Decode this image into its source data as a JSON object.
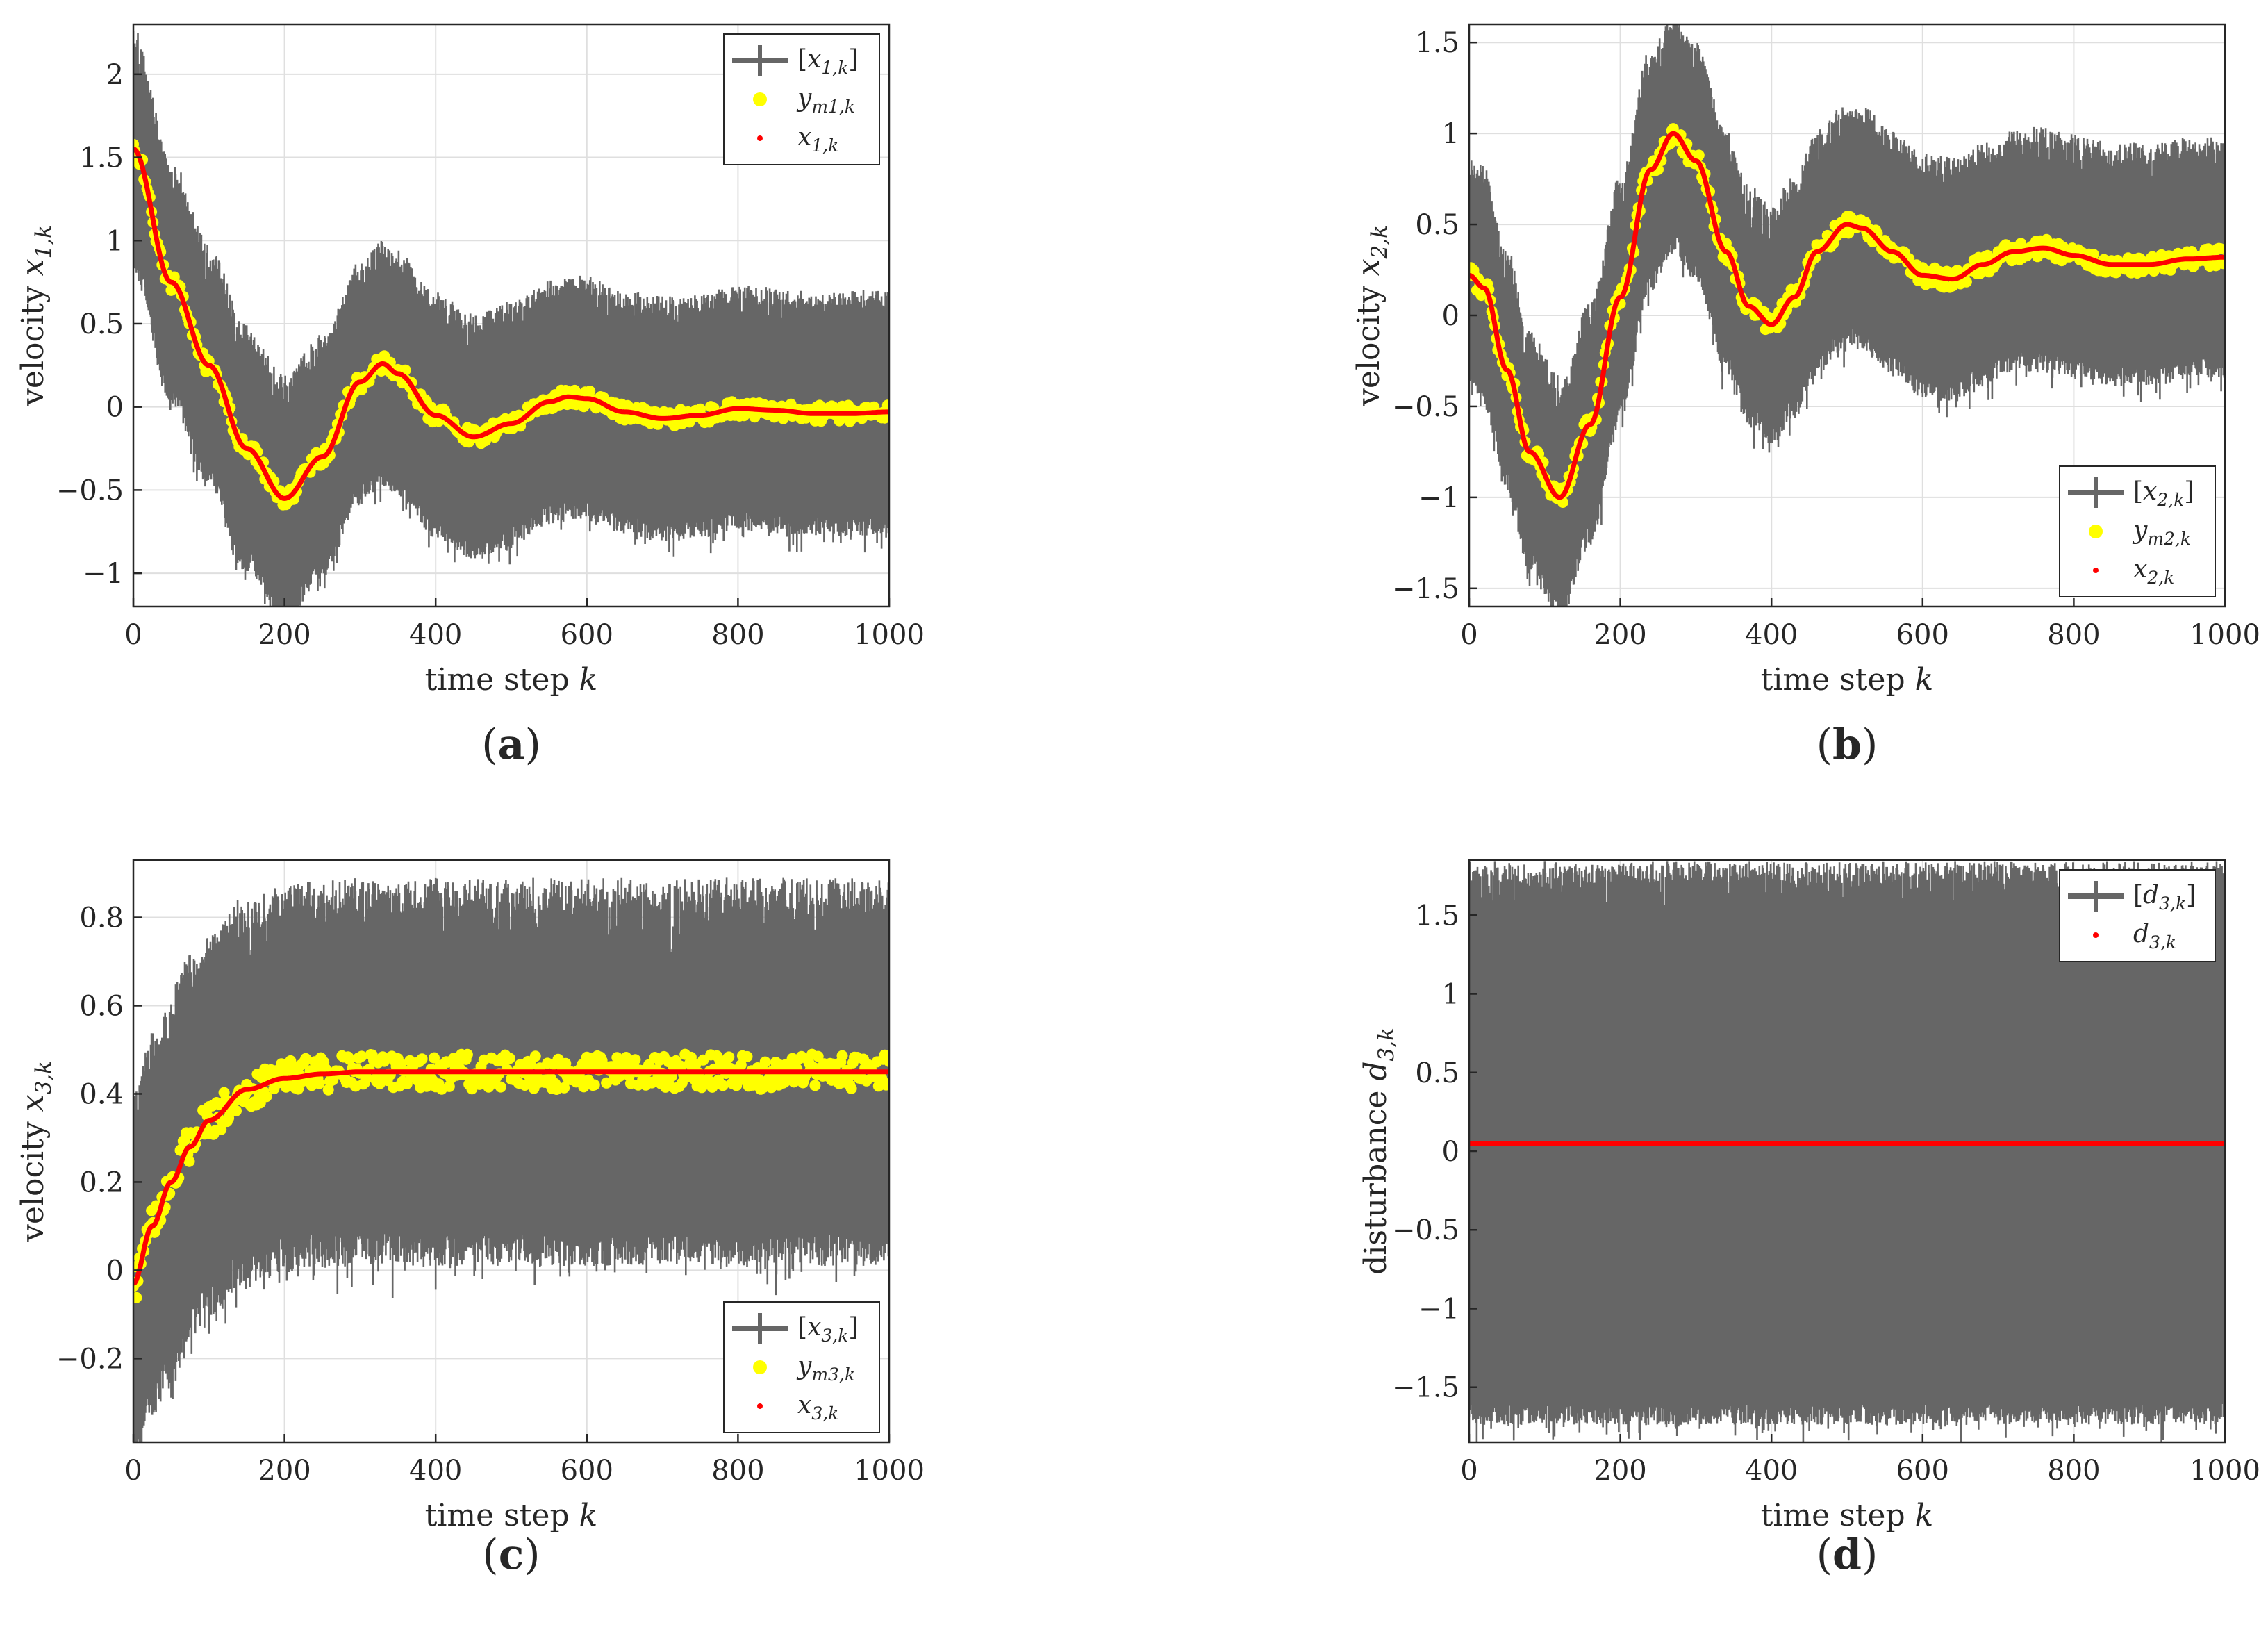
{
  "colors": {
    "band": "#666666",
    "measurement": "#ffff00",
    "truth": "#ff0000",
    "axis": "#262626",
    "grid": "#dfdfdf",
    "legend_border": "#262626"
  },
  "chart_data": [
    {
      "id": "a",
      "type": "line",
      "panel_label": "a",
      "xlabel": "time step k",
      "ylabel": "velocity x1,k",
      "xlim": [
        0,
        1000
      ],
      "ylim": [
        -1.2,
        2.3
      ],
      "xticks": [
        0,
        200,
        400,
        600,
        800,
        1000
      ],
      "xtick_labels": [
        "0",
        "200",
        "400",
        "600",
        "800",
        "1000"
      ],
      "yticks": [
        -1,
        -0.5,
        0,
        0.5,
        1,
        1.5,
        2
      ],
      "ytick_labels": [
        "−1",
        "−0.5",
        "0",
        "0.5",
        "1",
        "1.5",
        "2"
      ],
      "grid": true,
      "legend_position": "top-right",
      "legend": [
        "[x1,k]",
        "ym1,k",
        "x1,k"
      ],
      "signal": {
        "kind": "damped",
        "offset": 0.0,
        "amplitude": 1.55,
        "omega": 0.023,
        "phase": 0.0,
        "decay": 0.0052,
        "start": 1.55,
        "end_shift": -0.03
      },
      "band_halfwidth": 0.62,
      "band_noise": 0.06,
      "measurement_noise": 0.05,
      "x": [
        0,
        50,
        100,
        150,
        200,
        250,
        300,
        330,
        350,
        400,
        450,
        500,
        550,
        575,
        600,
        650,
        700,
        750,
        800,
        850,
        900,
        950,
        1000
      ],
      "series": [
        {
          "name": "x1,k",
          "values": [
            1.55,
            0.75,
            0.25,
            -0.25,
            -0.55,
            -0.3,
            0.15,
            0.26,
            0.2,
            -0.05,
            -0.18,
            -0.1,
            0.03,
            0.06,
            0.05,
            -0.03,
            -0.07,
            -0.05,
            -0.01,
            -0.02,
            -0.04,
            -0.04,
            -0.03
          ]
        }
      ]
    },
    {
      "id": "b",
      "type": "line",
      "panel_label": "b",
      "xlabel": "time step k",
      "ylabel": "velocity x2,k",
      "xlim": [
        0,
        1000
      ],
      "ylim": [
        -1.6,
        1.6
      ],
      "xticks": [
        0,
        200,
        400,
        600,
        800,
        1000
      ],
      "xtick_labels": [
        "0",
        "200",
        "400",
        "600",
        "800",
        "1000"
      ],
      "yticks": [
        -1.5,
        -1,
        -0.5,
        0,
        0.5,
        1,
        1.5
      ],
      "ytick_labels": [
        "−1.5",
        "−1",
        "−0.5",
        "0",
        "0.5",
        "1",
        "1.5"
      ],
      "grid": true,
      "legend_position": "bottom-right",
      "legend": [
        "[x2,k]",
        "ym2,k",
        "x2,k"
      ],
      "band_halfwidth": 0.55,
      "band_noise": 0.06,
      "measurement_noise": 0.05,
      "x": [
        0,
        20,
        50,
        80,
        120,
        160,
        200,
        240,
        270,
        300,
        340,
        370,
        400,
        430,
        460,
        500,
        520,
        560,
        600,
        640,
        680,
        720,
        760,
        800,
        850,
        900,
        950,
        1000
      ],
      "series": [
        {
          "name": "x2,k",
          "values": [
            0.22,
            0.15,
            -0.3,
            -0.75,
            -1.0,
            -0.6,
            0.1,
            0.8,
            1.0,
            0.85,
            0.35,
            0.05,
            -0.05,
            0.1,
            0.35,
            0.5,
            0.48,
            0.35,
            0.22,
            0.2,
            0.28,
            0.35,
            0.37,
            0.33,
            0.28,
            0.28,
            0.31,
            0.32
          ]
        }
      ]
    },
    {
      "id": "c",
      "type": "line",
      "panel_label": "c",
      "xlabel": "time step k",
      "ylabel": "velocity x3,k",
      "xlim": [
        0,
        1000
      ],
      "ylim": [
        -0.39,
        0.93
      ],
      "xticks": [
        0,
        200,
        400,
        600,
        800,
        1000
      ],
      "xtick_labels": [
        "0",
        "200",
        "400",
        "600",
        "800",
        "1000"
      ],
      "yticks": [
        -0.2,
        0,
        0.2,
        0.4,
        0.6,
        0.8
      ],
      "ytick_labels": [
        "−0.2",
        "0",
        "0.2",
        "0.4",
        "0.6",
        "0.8"
      ],
      "grid": true,
      "legend_position": "bottom-right",
      "legend": [
        "[x3,k]",
        "ym3,k",
        "x3,k"
      ],
      "band_halfwidth": 0.36,
      "band_noise": 0.04,
      "measurement_noise": 0.04,
      "x": [
        0,
        25,
        50,
        75,
        100,
        150,
        200,
        250,
        300,
        400,
        500,
        600,
        700,
        800,
        900,
        1000
      ],
      "series": [
        {
          "name": "x3,k",
          "values": [
            -0.03,
            0.1,
            0.2,
            0.28,
            0.34,
            0.41,
            0.435,
            0.445,
            0.45,
            0.45,
            0.45,
            0.45,
            0.45,
            0.45,
            0.45,
            0.45
          ]
        }
      ]
    },
    {
      "id": "d",
      "type": "line",
      "panel_label": "d",
      "xlabel": "time step k",
      "ylabel": "disturbance d3,k",
      "xlim": [
        0,
        1000
      ],
      "ylim": [
        -1.85,
        1.85
      ],
      "xticks": [
        0,
        200,
        400,
        600,
        800,
        1000
      ],
      "xtick_labels": [
        "0",
        "200",
        "400",
        "600",
        "800",
        "1000"
      ],
      "yticks": [
        -1.5,
        -1,
        -0.5,
        0,
        0.5,
        1,
        1.5
      ],
      "ytick_labels": [
        "−1.5",
        "−1",
        "−0.5",
        "0",
        "0.5",
        "1",
        "1.5"
      ],
      "grid": true,
      "legend_position": "top-right",
      "legend": [
        "[d3,k]",
        "d3,k"
      ],
      "band_halfwidth": 1.65,
      "band_noise": 0.07,
      "measurement_noise": 0,
      "x": [
        0,
        1000
      ],
      "series": [
        {
          "name": "d3,k",
          "values": [
            0.05,
            0.05
          ]
        }
      ]
    }
  ]
}
